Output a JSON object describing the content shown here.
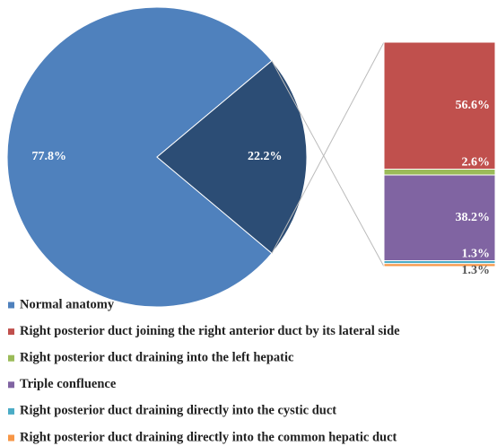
{
  "chart_data": {
    "type": "pie",
    "pie": {
      "categories": [
        "Normal anatomy",
        null
      ],
      "values": [
        77.8,
        22.2
      ],
      "value_labels": [
        "77.8%",
        "22.2%"
      ],
      "colors": [
        "#4f81bd",
        "#2c4d75"
      ]
    },
    "bar": {
      "series": [
        {
          "name": "Right posterior duct joining the right anterior duct by its lateral side",
          "color": "#c0504d",
          "values": [
            56.6
          ],
          "value_labels": [
            "56.6%"
          ]
        },
        {
          "name": "Right posterior duct draining into the left hepatic",
          "color": "#9bbb59",
          "values": [
            2.6
          ],
          "value_labels": [
            "2.6%"
          ]
        },
        {
          "name": "Triple confluence",
          "color": "#8064a2",
          "values": [
            38.2
          ],
          "value_labels": [
            "38.2%"
          ]
        },
        {
          "name": "Right posterior duct draining directly into the cystic duct",
          "color": "#4bacc6",
          "values": [
            1.3
          ],
          "value_labels": [
            "1.3%"
          ]
        },
        {
          "name": "Right posterior duct draining directly into the common hepatic duct",
          "color": "#f79646",
          "values": [
            1.3
          ],
          "value_labels": [
            "1.3%"
          ]
        }
      ]
    }
  }
}
